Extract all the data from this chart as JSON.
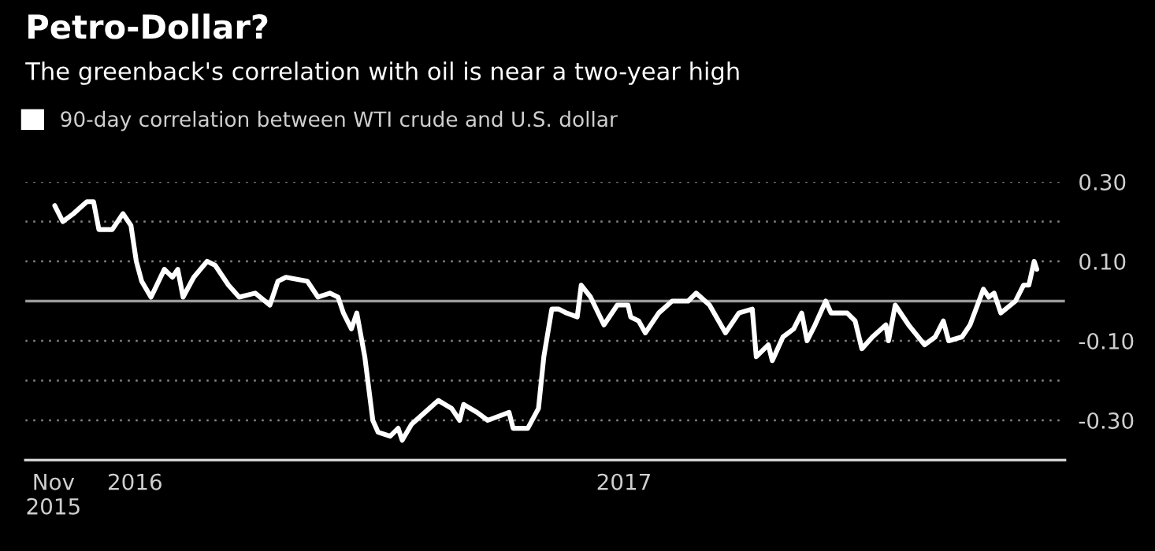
{
  "chart_data": {
    "type": "line",
    "title": "Petro-Dollar?",
    "subtitle": "The greenback's correlation with oil is near a two-year high",
    "x": [
      "2015-11-02",
      "2015-11-08",
      "2015-11-16",
      "2015-11-26",
      "2015-12-01",
      "2015-12-05",
      "2015-12-15",
      "2015-12-23",
      "2015-12-29",
      "2016-01-02",
      "2016-01-06",
      "2016-01-13",
      "2016-01-23",
      "2016-01-29",
      "2016-02-02",
      "2016-02-06",
      "2016-02-14",
      "2016-02-24",
      "2016-03-01",
      "2016-03-11",
      "2016-03-19",
      "2016-03-31",
      "2016-04-11",
      "2016-04-17",
      "2016-04-23",
      "2016-05-09",
      "2016-05-17",
      "2016-05-26",
      "2016-06-01",
      "2016-06-05",
      "2016-06-11",
      "2016-06-15",
      "2016-06-21",
      "2016-06-27",
      "2016-07-01",
      "2016-07-10",
      "2016-07-16",
      "2016-07-19",
      "2016-07-26",
      "2016-08-05",
      "2016-08-15",
      "2016-08-25",
      "2016-08-31",
      "2016-09-03",
      "2016-09-13",
      "2016-09-21",
      "2016-10-07",
      "2016-10-10",
      "2016-10-21",
      "2016-10-29",
      "2016-11-02",
      "2016-11-08",
      "2016-11-13",
      "2016-11-19",
      "2016-11-27",
      "2016-11-30",
      "2016-12-07",
      "2016-12-17",
      "2016-12-27",
      "2017-01-04",
      "2017-01-06",
      "2017-01-12",
      "2017-01-17",
      "2017-01-27",
      "2017-02-06",
      "2017-02-18",
      "2017-02-24",
      "2017-03-06",
      "2017-03-18",
      "2017-03-28",
      "2017-04-07",
      "2017-04-10",
      "2017-04-19",
      "2017-04-22",
      "2017-04-30",
      "2017-05-08",
      "2017-05-14",
      "2017-05-18",
      "2017-05-24",
      "2017-06-01",
      "2017-06-05",
      "2017-06-17",
      "2017-06-23",
      "2017-06-28",
      "2017-07-06",
      "2017-07-16",
      "2017-07-18",
      "2017-07-23",
      "2017-08-02",
      "2017-08-14",
      "2017-08-22",
      "2017-08-28",
      "2017-09-01",
      "2017-09-11",
      "2017-09-17",
      "2017-09-27",
      "2017-10-01",
      "2017-10-05",
      "2017-10-10",
      "2017-10-21",
      "2017-10-27",
      "2017-10-31",
      "2017-11-04",
      "2017-11-06"
    ],
    "series": [
      {
        "name": "90-day correlation between WTI crude and U.S. dollar",
        "color": "#ffffff",
        "values": [
          0.24,
          0.2,
          0.22,
          0.25,
          0.25,
          0.18,
          0.18,
          0.22,
          0.19,
          0.1,
          0.05,
          0.01,
          0.08,
          0.06,
          0.08,
          0.01,
          0.06,
          0.1,
          0.09,
          0.04,
          0.01,
          0.02,
          -0.01,
          0.05,
          0.06,
          0.05,
          0.01,
          0.02,
          0.01,
          -0.03,
          -0.07,
          -0.03,
          -0.14,
          -0.3,
          -0.33,
          -0.34,
          -0.32,
          -0.35,
          -0.31,
          -0.28,
          -0.25,
          -0.27,
          -0.3,
          -0.26,
          -0.28,
          -0.3,
          -0.28,
          -0.32,
          -0.32,
          -0.27,
          -0.14,
          -0.02,
          -0.02,
          -0.03,
          -0.04,
          0.04,
          0.01,
          -0.06,
          -0.01,
          -0.01,
          -0.04,
          -0.05,
          -0.08,
          -0.03,
          0.0,
          0.0,
          0.02,
          -0.01,
          -0.08,
          -0.03,
          -0.02,
          -0.14,
          -0.11,
          -0.15,
          -0.09,
          -0.07,
          -0.03,
          -0.1,
          -0.06,
          0.0,
          -0.03,
          -0.03,
          -0.05,
          -0.12,
          -0.09,
          -0.06,
          -0.1,
          -0.01,
          -0.06,
          -0.11,
          -0.09,
          -0.05,
          -0.1,
          -0.09,
          -0.06,
          0.03,
          0.01,
          0.02,
          -0.03,
          0.0,
          0.04,
          0.04,
          0.1,
          0.08
        ]
      }
    ],
    "xlim": [
      "2015-10-11",
      "2017-11-27"
    ],
    "xticks": [
      {
        "value": "2015-11-01",
        "label": "Nov\n2015"
      },
      {
        "value": "2016-01-01",
        "label": "2016"
      },
      {
        "value": "2017-01-01",
        "label": "2017"
      }
    ],
    "ylim": [
      -0.4,
      0.3
    ],
    "yticks": [
      {
        "value": -0.3,
        "label": "-0.30"
      },
      {
        "value": -0.2,
        "label": null
      },
      {
        "value": -0.1,
        "label": "-0.10"
      },
      {
        "value": 0,
        "label": null
      },
      {
        "value": 0.1,
        "label": "0.10"
      },
      {
        "value": 0.2,
        "label": null
      },
      {
        "value": 0.3,
        "label": "0.30"
      }
    ],
    "ref_lines": [
      {
        "axis": "y",
        "value": 0,
        "color": "#9a9a9a",
        "line_style": "solid"
      }
    ],
    "grid": "y",
    "legend": "top left",
    "line_style": "solid",
    "marker": "none"
  }
}
